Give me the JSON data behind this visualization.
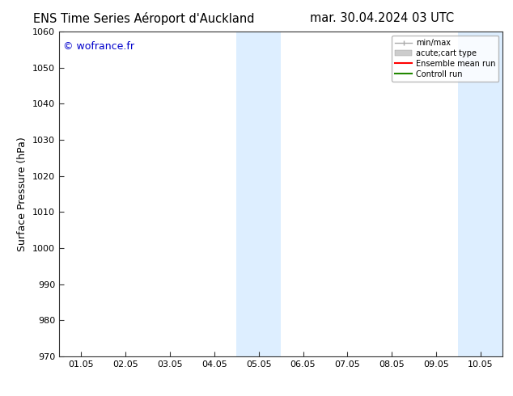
{
  "title_left": "ENS Time Series Aéroport d'Auckland",
  "title_right": "mar. 30.04.2024 03 UTC",
  "ylabel": "Surface Pressure (hPa)",
  "ylim": [
    970,
    1060
  ],
  "yticks": [
    970,
    980,
    990,
    1000,
    1010,
    1020,
    1030,
    1040,
    1050,
    1060
  ],
  "x_tick_labels": [
    "01.05",
    "02.05",
    "03.05",
    "04.05",
    "05.05",
    "06.05",
    "07.05",
    "08.05",
    "09.05",
    "10.05"
  ],
  "x_tick_positions": [
    0,
    1,
    2,
    3,
    4,
    5,
    6,
    7,
    8,
    9
  ],
  "x_min": -0.5,
  "x_max": 9.5,
  "shaded_regions": [
    {
      "x_start": 3.5,
      "x_end": 4.5,
      "color": "#ddeeff"
    },
    {
      "x_start": 8.5,
      "x_end": 9.5,
      "color": "#ddeeff"
    }
  ],
  "watermark": "© wofrance.fr",
  "watermark_color": "#0000cc",
  "legend_items": [
    {
      "label": "min/max"
    },
    {
      "label": "acute;cart type"
    },
    {
      "label": "Ensemble mean run"
    },
    {
      "label": "Controll run"
    }
  ],
  "legend_colors": [
    "#aaaaaa",
    "#cccccc",
    "#ff0000",
    "#228800"
  ],
  "bg_color": "#ffffff",
  "spine_color": "#333333",
  "title_fontsize": 10.5,
  "tick_fontsize": 8,
  "ylabel_fontsize": 9,
  "watermark_fontsize": 9
}
